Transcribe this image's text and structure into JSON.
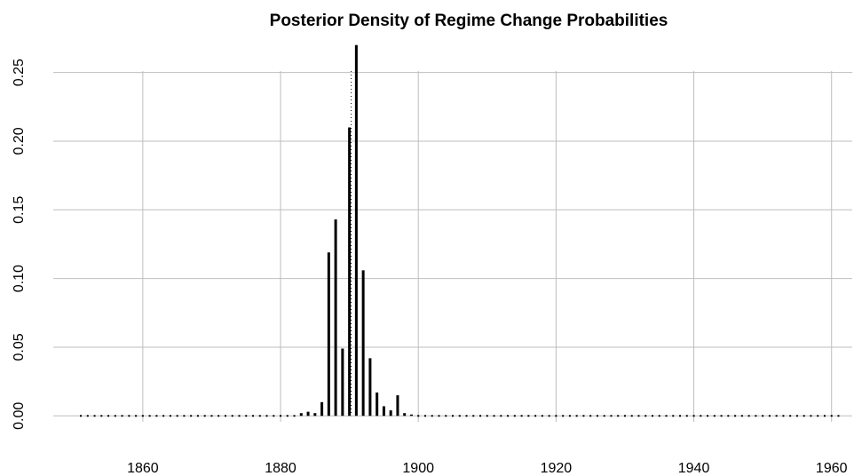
{
  "chart_data": {
    "type": "spike",
    "title": "Posterior Density of Regime Change Probabilities",
    "x": [
      1851,
      1852,
      1853,
      1854,
      1855,
      1856,
      1857,
      1858,
      1859,
      1860,
      1861,
      1862,
      1863,
      1864,
      1865,
      1866,
      1867,
      1868,
      1869,
      1870,
      1871,
      1872,
      1873,
      1874,
      1875,
      1876,
      1877,
      1878,
      1879,
      1880,
      1881,
      1882,
      1883,
      1884,
      1885,
      1886,
      1887,
      1888,
      1889,
      1890,
      1891,
      1892,
      1893,
      1894,
      1895,
      1896,
      1897,
      1898,
      1899,
      1900,
      1901,
      1902,
      1903,
      1904,
      1905,
      1906,
      1907,
      1908,
      1909,
      1910,
      1911,
      1912,
      1913,
      1914,
      1915,
      1916,
      1917,
      1918,
      1919,
      1920,
      1921,
      1922,
      1923,
      1924,
      1925,
      1926,
      1927,
      1928,
      1929,
      1930,
      1931,
      1932,
      1933,
      1934,
      1935,
      1936,
      1937,
      1938,
      1939,
      1940,
      1941,
      1942,
      1943,
      1944,
      1945,
      1946,
      1947,
      1948,
      1949,
      1950,
      1951,
      1952,
      1953,
      1954,
      1955,
      1956,
      1957,
      1958,
      1959,
      1960,
      1961
    ],
    "values": [
      0,
      0,
      0,
      0,
      0,
      0,
      0,
      0,
      0,
      0,
      0,
      0,
      0,
      0,
      0,
      0,
      0,
      0,
      0,
      0,
      0,
      0,
      0,
      0,
      0,
      0,
      0,
      0,
      0,
      0,
      0,
      0,
      0.002,
      0.003,
      0.002,
      0.01,
      0.119,
      0.143,
      0.049,
      0.21,
      0.27,
      0.106,
      0.042,
      0.017,
      0.007,
      0.004,
      0.015,
      0.002,
      0.001,
      0,
      0,
      0,
      0,
      0,
      0,
      0,
      0,
      0,
      0,
      0,
      0,
      0,
      0,
      0,
      0,
      0,
      0,
      0,
      0,
      0,
      0,
      0,
      0,
      0,
      0,
      0,
      0,
      0,
      0,
      0,
      0,
      0,
      0,
      0,
      0,
      0,
      0,
      0,
      0,
      0,
      0,
      0,
      0,
      0,
      0,
      0,
      0,
      0,
      0,
      0,
      0,
      0,
      0,
      0,
      0,
      0,
      0,
      0,
      0,
      0,
      0
    ],
    "color": "#000000",
    "vline": 1890,
    "xlim": [
      1847,
      1963
    ],
    "xticks": [
      1860,
      1880,
      1900,
      1920,
      1940,
      1960
    ],
    "ylim": [
      -0.0108,
      0.2808
    ],
    "yticks": [
      {
        "value": 0,
        "label": "0.00"
      },
      {
        "value": 0.05,
        "label": "0.05"
      },
      {
        "value": 0.1,
        "label": "0.10"
      },
      {
        "value": 0.15,
        "label": "0.15"
      },
      {
        "value": 0.2,
        "label": "0.20"
      },
      {
        "value": 0.25,
        "label": "0.25"
      }
    ],
    "grid": true
  }
}
